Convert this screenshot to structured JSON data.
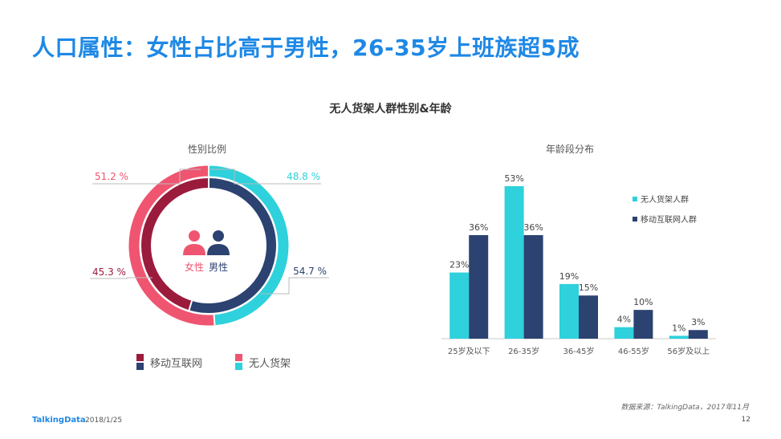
{
  "page": {
    "title": "人口属性：女性占比高于男性，26-35岁上班族超5成",
    "subtitle": "无人货架人群性别&年龄",
    "source": "数据来源：TalkingData，2017年11月",
    "footer_brand": "TalkingData",
    "footer_date": "2018/1/25",
    "page_number": "12"
  },
  "colors": {
    "title_blue": "#1E88E5",
    "cyan": "#2ED1DC",
    "pink": "#EF5570",
    "maroon": "#9B1B3D",
    "navy": "#2C4270"
  },
  "chart_data": [
    {
      "type": "pie",
      "title": "性别比例",
      "center_labels": {
        "female": "女性",
        "male": "男性"
      },
      "center_icons": [
        "female-person-icon",
        "male-person-icon"
      ],
      "series": [
        {
          "name": "无人货架",
          "colors": {
            "女性": "#EF5570",
            "男性": "#2ED1DC"
          },
          "labels": [
            "51.2 %",
            "48.8 %"
          ],
          "slices": [
            {
              "category": "女性",
              "value": 51.2
            },
            {
              "category": "男性",
              "value": 48.8
            }
          ]
        },
        {
          "name": "移动互联网",
          "colors": {
            "女性": "#9B1B3D",
            "男性": "#2C4270"
          },
          "labels": [
            "45.3 %",
            "54.7 %"
          ],
          "slices": [
            {
              "category": "女性",
              "value": 45.3
            },
            {
              "category": "男性",
              "value": 54.7
            }
          ]
        }
      ],
      "legend": [
        "移动互联网",
        "无人货架"
      ]
    },
    {
      "type": "bar",
      "title": "年龄段分布",
      "categories": [
        "25岁及以下",
        "26-35岁",
        "36-45岁",
        "46-55岁",
        "56岁及以上"
      ],
      "series": [
        {
          "name": "无人货架人群",
          "color": "#2ED1DC",
          "values": [
            23,
            53,
            19,
            4,
            1
          ],
          "labels": [
            "23%",
            "53%",
            "19%",
            "4%",
            "1%"
          ]
        },
        {
          "name": "移动互联网人群",
          "color": "#2C4270",
          "values": [
            36,
            36,
            15,
            10,
            3
          ],
          "labels": [
            "36%",
            "36%",
            "15%",
            "10%",
            "3%"
          ]
        }
      ],
      "legend_position": "top-right",
      "ylim": [
        0,
        60
      ],
      "grid": false
    }
  ]
}
